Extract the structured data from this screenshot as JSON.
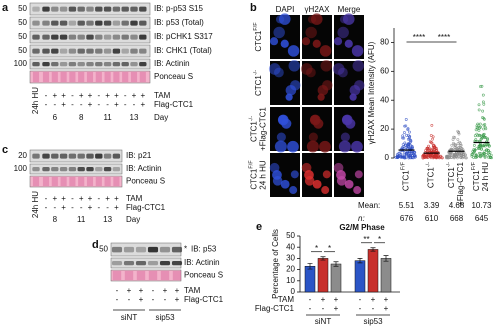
{
  "panel_a": {
    "label": "a",
    "blots": [
      {
        "marker": "50",
        "label": "IB: p-p53 S15"
      },
      {
        "marker": "50",
        "label": "IB: p53 (Total)"
      },
      {
        "marker": "50",
        "label": "IB: pCHK1 S317"
      },
      {
        "marker": "50",
        "label": "IB: CHK1 (Total)"
      },
      {
        "marker": "100",
        "label": "IB: Actinin"
      },
      {
        "label": "Ponceau S"
      }
    ],
    "hu_label": "24h HU",
    "rows": [
      {
        "name": "TAM",
        "signs": [
          "-",
          "+",
          "+",
          "-",
          "+",
          "+",
          "-",
          "+",
          "+",
          "-",
          "+",
          "+"
        ]
      },
      {
        "name": "Flag-CTC1",
        "signs": [
          "-",
          "-",
          "+",
          "-",
          "-",
          "+",
          "-",
          "-",
          "+",
          "-",
          "-",
          "+"
        ]
      }
    ],
    "day_label": "Day",
    "days": [
      "6",
      "8",
      "11",
      "13"
    ]
  },
  "panel_b": {
    "label": "b",
    "channels": [
      "DAPI",
      "γH2AX",
      "Merge"
    ],
    "channel_colors": [
      "#2a5bd7",
      "#c0282a",
      "#111111"
    ],
    "rows": [
      {
        "base": "CTC1",
        "sup": "F/F"
      },
      {
        "base": "CTC1",
        "sup": "-/-"
      },
      {
        "base": "CTC1",
        "sup": "-/-",
        "extra": "+Flag-CTC1"
      },
      {
        "base": "CTC1",
        "sup": "F/F",
        "extra": "24 h HU"
      }
    ]
  },
  "panel_c": {
    "label": "c",
    "blots": [
      {
        "marker": "20",
        "label": "IB: p21"
      },
      {
        "marker": "100",
        "label": "IB: Actinin"
      },
      {
        "label": "Ponceau S"
      }
    ],
    "hu_label": "24h HU",
    "rows": [
      {
        "name": "TAM",
        "signs": [
          "-",
          "+",
          "+",
          "-",
          "+",
          "+",
          "-",
          "+",
          "+"
        ]
      },
      {
        "name": "Flag-CTC1",
        "signs": [
          "-",
          "-",
          "+",
          "-",
          "-",
          "+",
          "-",
          "-",
          "+"
        ]
      }
    ],
    "day_label": "Day",
    "days": [
      "8",
      "11",
      "13"
    ]
  },
  "panel_d": {
    "label": "d",
    "blots": [
      {
        "marker": "50",
        "label": "IB: p53",
        "note": "*"
      },
      {
        "label": "IB: Actinin"
      },
      {
        "label": "Ponceau S"
      }
    ],
    "rows": [
      {
        "name": "TAM",
        "signs": [
          "-",
          "+",
          "+",
          "-",
          "+",
          "+"
        ]
      },
      {
        "name": "Flag-CTC1",
        "signs": [
          "-",
          "-",
          "+",
          "-",
          "-",
          "+"
        ]
      }
    ],
    "groups": [
      "siNT",
      "sip53"
    ]
  },
  "chart_data": [
    {
      "type": "strip",
      "ylabel": "γH2AX Mean Intensity (AFU)",
      "categories": [
        {
          "base": "CTC1",
          "sup": "F/F"
        },
        {
          "base": "CTC1",
          "sup": "-/-"
        },
        {
          "base": "CTC1",
          "sup": "-/-",
          "extra": "+Flag-CTC1"
        },
        {
          "base": "CTC1",
          "sup": "F/F",
          "extra": "24 h HU"
        }
      ],
      "colors": [
        "#2f4fc4",
        "#c8302c",
        "#8c8c8c",
        "#3a9a4a"
      ],
      "ylim": [
        0,
        90
      ],
      "yticks": [
        0,
        20,
        40,
        60,
        80
      ],
      "significance": [
        "****",
        "****"
      ],
      "mean_label": "Mean:",
      "means": [
        5.51,
        3.39,
        4.68,
        10.73
      ],
      "n_label": "n:",
      "n": [
        676,
        610,
        668,
        645
      ]
    },
    {
      "type": "bar",
      "label": "e",
      "title": "G2/M Phase",
      "ylabel": "Percentage of Cells",
      "ylim": [
        0,
        50
      ],
      "yticks": [
        0,
        10,
        20,
        30,
        40,
        50
      ],
      "values": [
        23,
        30,
        25,
        28,
        38,
        30
      ],
      "errors": [
        2.5,
        1.5,
        2,
        2,
        1.5,
        2.5
      ],
      "colors": [
        "#2b55c6",
        "#c8302c",
        "#8c8c8c",
        "#2b55c6",
        "#c8302c",
        "#8c8c8c"
      ],
      "significance": [
        "*",
        "*",
        "**",
        "*"
      ],
      "rows": [
        {
          "name": "TAM",
          "signs": [
            "-",
            "+",
            "+",
            "-",
            "+",
            "+"
          ]
        },
        {
          "name": "Flag-CTC1",
          "signs": [
            "-",
            "-",
            "+",
            "-",
            "-",
            "+"
          ]
        }
      ],
      "groups": [
        "siNT",
        "sip53"
      ]
    }
  ]
}
